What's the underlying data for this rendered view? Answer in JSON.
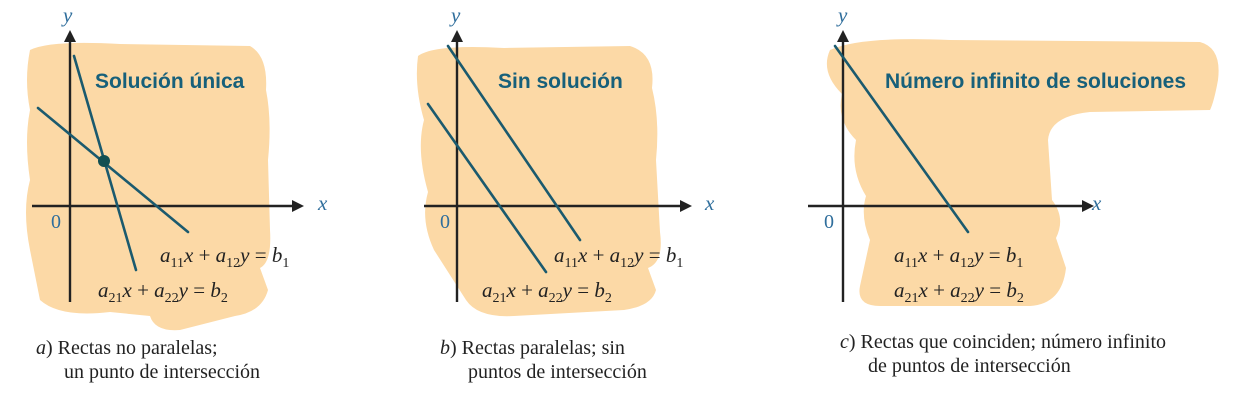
{
  "panels": [
    {
      "id": "a",
      "heading": "Solución única",
      "axis_x": "x",
      "axis_y": "y",
      "origin": "0",
      "equations": [
        {
          "c1": "a",
          "s1": "11",
          "v1": "x",
          "op": " + ",
          "c2": "a",
          "s2": "12",
          "v2": "y",
          "eq": " = ",
          "r": "b",
          "rs": "1"
        },
        {
          "c1": "a",
          "s1": "21",
          "v1": "x",
          "op": " + ",
          "c2": "a",
          "s2": "22",
          "v2": "y",
          "eq": " = ",
          "r": "b",
          "rs": "2"
        }
      ],
      "caption_letter": "a",
      "caption_line1": ") Rectas no paralelas;",
      "caption_line2": "un punto de intersección"
    },
    {
      "id": "b",
      "heading": "Sin solución",
      "axis_x": "x",
      "axis_y": "y",
      "origin": "0",
      "equations": [
        {
          "c1": "a",
          "s1": "11",
          "v1": "x",
          "op": " + ",
          "c2": "a",
          "s2": "12",
          "v2": "y",
          "eq": " = ",
          "r": "b",
          "rs": "1"
        },
        {
          "c1": "a",
          "s1": "21",
          "v1": "x",
          "op": " + ",
          "c2": "a",
          "s2": "22",
          "v2": "y",
          "eq": " = ",
          "r": "b",
          "rs": "2"
        }
      ],
      "caption_letter": "b",
      "caption_line1": ") Rectas paralelas; sin",
      "caption_line2": "puntos de intersección"
    },
    {
      "id": "c",
      "heading": "Número infinito de soluciones",
      "axis_x": "x",
      "axis_y": "y",
      "origin": "0",
      "equations": [
        {
          "c1": "a",
          "s1": "11",
          "v1": "x",
          "op": " + ",
          "c2": "a",
          "s2": "12",
          "v2": "y",
          "eq": " = ",
          "r": "b",
          "rs": "1"
        },
        {
          "c1": "a",
          "s1": "21",
          "v1": "x",
          "op": " + ",
          "c2": "a",
          "s2": "22",
          "v2": "y",
          "eq": " = ",
          "r": "b",
          "rs": "2"
        }
      ],
      "caption_letter": "c",
      "caption_line1": ") Rectas que coinciden; número infinito",
      "caption_line2": "de puntos de intersección"
    }
  ],
  "colors": {
    "highlight": "#fcd9a6",
    "heading": "#17607a",
    "line": "#1b5a6e",
    "axis_label": "#2f6e9c"
  }
}
